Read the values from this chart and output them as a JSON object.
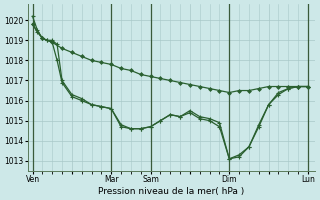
{
  "background_color": "#cde8e8",
  "grid_color": "#a8c8c8",
  "line_color": "#2a6030",
  "marker_color": "#2a6030",
  "title": "Pression niveau de la mer( hPa )",
  "ylim": [
    1012.5,
    1020.8
  ],
  "yticks": [
    1013,
    1014,
    1015,
    1016,
    1017,
    1018,
    1019,
    1020
  ],
  "xtick_labels": [
    "Ven",
    "",
    "Mar",
    "Sam",
    "",
    "Dim",
    "",
    "Lun"
  ],
  "xtick_positions": [
    0,
    24,
    48,
    72,
    96,
    120,
    144,
    168
  ],
  "vlines": [
    0,
    48,
    72,
    120,
    168
  ],
  "series1": {
    "x": [
      0,
      6,
      12,
      18,
      24,
      30,
      36,
      42,
      48,
      54,
      60,
      66,
      72,
      78,
      84,
      90,
      96,
      102,
      108,
      114,
      120,
      126,
      132,
      138,
      144,
      150,
      156,
      162,
      168
    ],
    "y": [
      1019.8,
      1019.1,
      1018.9,
      1018.6,
      1018.4,
      1018.2,
      1018.0,
      1017.9,
      1017.8,
      1017.6,
      1017.5,
      1017.3,
      1017.2,
      1017.1,
      1017.0,
      1016.9,
      1016.8,
      1016.7,
      1016.6,
      1016.5,
      1016.4,
      1016.5,
      1016.5,
      1016.6,
      1016.7,
      1016.7,
      1016.7,
      1016.7,
      1016.7
    ]
  },
  "series2": {
    "x": [
      0,
      3,
      6,
      9,
      12,
      15,
      18,
      24,
      30,
      36,
      42,
      48,
      54,
      60,
      66,
      72,
      78,
      84,
      90,
      96,
      102,
      108,
      114,
      120,
      126,
      132,
      138,
      144,
      150,
      156,
      162,
      168
    ],
    "y": [
      1019.8,
      1019.4,
      1019.1,
      1019.0,
      1018.9,
      1018.0,
      1016.9,
      1016.2,
      1016.0,
      1015.8,
      1015.7,
      1015.6,
      1014.8,
      1014.6,
      1014.6,
      1014.7,
      1015.0,
      1015.3,
      1015.2,
      1015.4,
      1015.1,
      1015.0,
      1014.7,
      1013.1,
      1013.3,
      1013.7,
      1014.7,
      1015.8,
      1016.3,
      1016.6,
      1016.7,
      1016.7
    ]
  },
  "series3": {
    "x": [
      0,
      3,
      6,
      9,
      12,
      15,
      18,
      24,
      30,
      36,
      42,
      48,
      54,
      60,
      66,
      72,
      78,
      84,
      90,
      96,
      102,
      108,
      114,
      120,
      126,
      132,
      138,
      144,
      150,
      156,
      162,
      168
    ],
    "y": [
      1020.2,
      1019.5,
      1019.1,
      1019.0,
      1019.0,
      1018.8,
      1017.0,
      1016.3,
      1016.1,
      1015.8,
      1015.7,
      1015.6,
      1014.7,
      1014.6,
      1014.6,
      1014.7,
      1015.0,
      1015.3,
      1015.2,
      1015.5,
      1015.2,
      1015.1,
      1014.9,
      1013.1,
      1013.2,
      1013.7,
      1014.8,
      1015.8,
      1016.4,
      1016.6,
      1016.7,
      1016.7
    ]
  }
}
